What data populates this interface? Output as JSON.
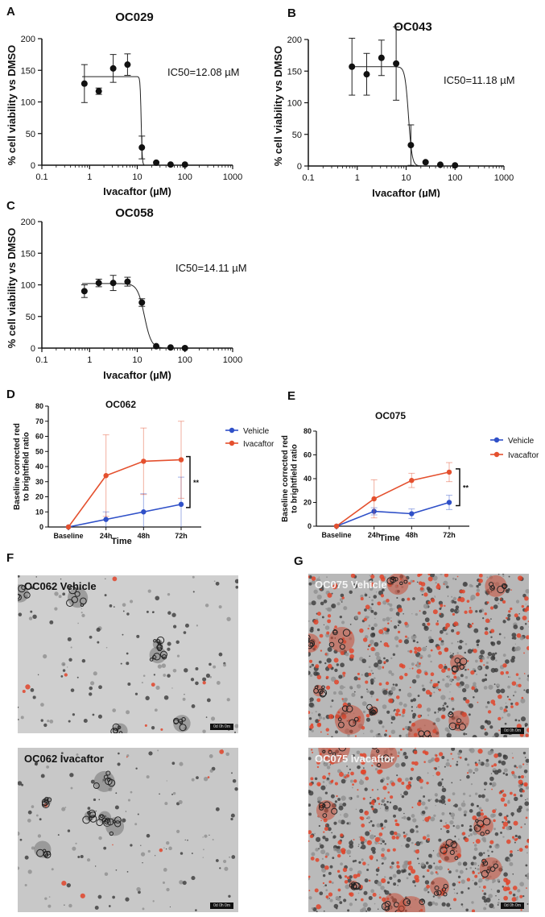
{
  "panel_labels": {
    "a": "A",
    "b": "B",
    "c": "C",
    "d": "D",
    "e": "E",
    "f": "F",
    "g": "G"
  },
  "chart_data": [
    {
      "id": "A",
      "type": "scatter",
      "title": "OC029",
      "xlabel": "Ivacaftor (µM)",
      "ylabel": "% cell viability vs DMSO",
      "xscale": "log",
      "xlim": [
        0.1,
        1000
      ],
      "ylim": [
        0,
        200
      ],
      "xticks": [
        0.1,
        1,
        10,
        100,
        1000
      ],
      "xticklabels": [
        "0.1",
        "1",
        "10",
        "100",
        "1000"
      ],
      "yticks": [
        0,
        50,
        100,
        150,
        200
      ],
      "yticklabels": [
        "0",
        "50",
        "100",
        "150",
        "200"
      ],
      "annotation": "IC50=12.08 µM",
      "points": [
        {
          "x": 0.78,
          "y": 129,
          "err": 30
        },
        {
          "x": 1.56,
          "y": 117,
          "err": 5
        },
        {
          "x": 3.13,
          "y": 153,
          "err": 22
        },
        {
          "x": 6.25,
          "y": 159,
          "err": 17
        },
        {
          "x": 12.5,
          "y": 28,
          "err": 18
        },
        {
          "x": 25,
          "y": 4,
          "err": 0
        },
        {
          "x": 50,
          "y": 1,
          "err": 0
        },
        {
          "x": 100,
          "y": 1,
          "err": 0
        }
      ],
      "fit": {
        "top": 140,
        "bottom": 0,
        "ic50": 12.08,
        "hill": 40
      },
      "grid": false,
      "legend": "none"
    },
    {
      "id": "B",
      "type": "scatter",
      "title": "OC043",
      "xlabel": "Ivacaftor (µM)",
      "ylabel": "% cell viability vs DMSO",
      "xscale": "log",
      "xlim": [
        0.1,
        1000
      ],
      "ylim": [
        0,
        200
      ],
      "xticks": [
        0.1,
        1,
        10,
        100,
        1000
      ],
      "xticklabels": [
        "0.1",
        "1",
        "10",
        "100",
        "1000"
      ],
      "yticks": [
        0,
        50,
        100,
        150,
        200
      ],
      "yticklabels": [
        "0",
        "50",
        "100",
        "150",
        "200"
      ],
      "annotation": "IC50=11.18 µM",
      "points": [
        {
          "x": 0.78,
          "y": 157,
          "err": 45
        },
        {
          "x": 1.56,
          "y": 145,
          "err": 33
        },
        {
          "x": 3.13,
          "y": 171,
          "err": 28
        },
        {
          "x": 6.25,
          "y": 162,
          "err": 58
        },
        {
          "x": 12.5,
          "y": 33,
          "err": 32
        },
        {
          "x": 25,
          "y": 6,
          "err": 0
        },
        {
          "x": 50,
          "y": 2,
          "err": 0
        },
        {
          "x": 100,
          "y": 1,
          "err": 0
        }
      ],
      "fit": {
        "top": 157,
        "bottom": 0,
        "ic50": 11.18,
        "hill": 12
      },
      "grid": false,
      "legend": "none"
    },
    {
      "id": "C",
      "type": "scatter",
      "title": "OC058",
      "xlabel": "Ivacaftor (µM)",
      "ylabel": "% cell viability vs DMSO",
      "xscale": "log",
      "xlim": [
        0.1,
        1000
      ],
      "ylim": [
        0,
        200
      ],
      "xticks": [
        0.1,
        1,
        10,
        100,
        1000
      ],
      "xticklabels": [
        "0.1",
        "1",
        "10",
        "100",
        "1000"
      ],
      "yticks": [
        0,
        50,
        100,
        150,
        200
      ],
      "yticklabels": [
        "0",
        "50",
        "100",
        "150",
        "200"
      ],
      "annotation": "IC50=14.11 µM",
      "points": [
        {
          "x": 0.78,
          "y": 90,
          "err": 10
        },
        {
          "x": 1.56,
          "y": 103,
          "err": 6
        },
        {
          "x": 3.13,
          "y": 103,
          "err": 12
        },
        {
          "x": 6.25,
          "y": 105,
          "err": 7
        },
        {
          "x": 12.5,
          "y": 72,
          "err": 6
        },
        {
          "x": 25,
          "y": 3,
          "err": 0
        },
        {
          "x": 50,
          "y": 1,
          "err": 0
        },
        {
          "x": 100,
          "y": 0,
          "err": 0
        }
      ],
      "fit": {
        "top": 102,
        "bottom": 0,
        "ic50": 14.11,
        "hill": 6
      },
      "grid": false,
      "legend": "none"
    },
    {
      "id": "D",
      "type": "line",
      "title": "OC062",
      "categories": [
        "Baseline",
        "24h",
        "48h",
        "72h"
      ],
      "xlabel": "Time",
      "ylabel": "Baseline corrected red to brightfield ratio",
      "ylim": [
        0,
        80
      ],
      "yticks": [
        0,
        10,
        20,
        30,
        40,
        50,
        60,
        70,
        80
      ],
      "yticklabels": [
        "0",
        "10",
        "20",
        "30",
        "40",
        "50",
        "60",
        "70",
        "80"
      ],
      "series": [
        {
          "name": "Vehicle",
          "color": "#2f50c8",
          "values": [
            0,
            5,
            10,
            15
          ],
          "err": [
            0,
            5,
            12,
            18
          ]
        },
        {
          "name": "Ivacaftor",
          "color": "#e4502e",
          "values": [
            0,
            34,
            43.5,
            44.5
          ],
          "err": [
            0,
            27,
            22,
            25.5
          ]
        }
      ],
      "significance": "**",
      "legend": "right",
      "grid": false
    },
    {
      "id": "E",
      "type": "line",
      "title": "OC075",
      "categories": [
        "Baseline",
        "24h",
        "48h",
        "72h"
      ],
      "xlabel": "Time",
      "ylabel": "Baseline corrected red to brightfield ratio",
      "ylim": [
        0,
        80
      ],
      "yticks": [
        0,
        20,
        40,
        60,
        80
      ],
      "yticklabels": [
        "0",
        "20",
        "40",
        "60",
        "80"
      ],
      "series": [
        {
          "name": "Vehicle",
          "color": "#2f50c8",
          "values": [
            0,
            12.5,
            10.5,
            20
          ],
          "err": [
            0,
            3,
            4,
            6
          ]
        },
        {
          "name": "Ivacaftor",
          "color": "#e4502e",
          "values": [
            0,
            23,
            38.5,
            45.5
          ],
          "err": [
            0,
            16,
            6,
            8
          ]
        }
      ],
      "significance": "**",
      "legend": "right",
      "grid": false
    }
  ],
  "images": [
    {
      "id": "F1",
      "caption": "OC062 Vehicle",
      "scale": "0d 0h 0m",
      "density": "low"
    },
    {
      "id": "F2",
      "caption": "OC062 Ivacaftor",
      "scale": "0d 0h 0m",
      "density": "low"
    },
    {
      "id": "G1",
      "caption": "OC075 Vehicle",
      "scale": "0d 0h 0m",
      "density": "high"
    },
    {
      "id": "G2",
      "caption": "OC075 Ivacaftor",
      "scale": "0d 0h 0m",
      "density": "high"
    }
  ]
}
